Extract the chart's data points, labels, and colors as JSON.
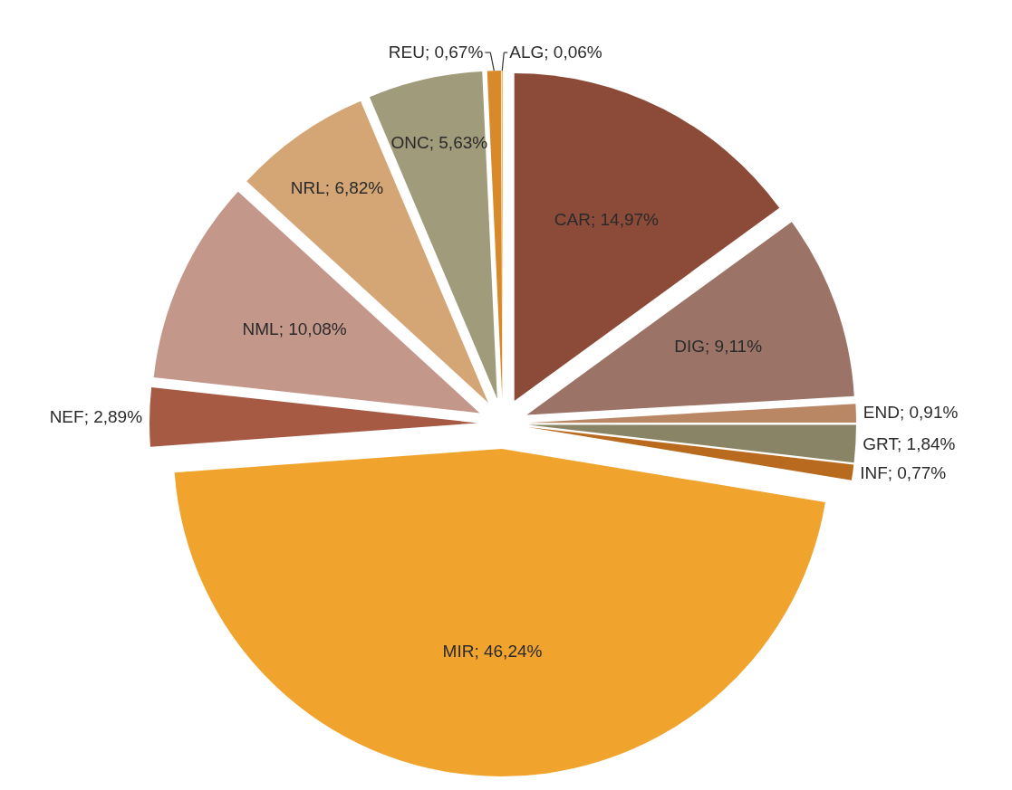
{
  "chart_data": {
    "type": "pie",
    "categories": [
      "CAR",
      "DIG",
      "END",
      "GRT",
      "INF",
      "MIR",
      "NEF",
      "NML",
      "NRL",
      "ONC",
      "REU",
      "ALG"
    ],
    "values": [
      14.97,
      9.11,
      0.91,
      1.84,
      0.77,
      46.24,
      2.89,
      10.08,
      6.82,
      5.63,
      0.67,
      0.06
    ],
    "value_labels": [
      "14,97%",
      "9,11%",
      "0,91%",
      "1,84%",
      "0,77%",
      "46,24%",
      "2,89%",
      "10,08%",
      "6,82%",
      "5,63%",
      "0,67%",
      "0,06%"
    ],
    "colors": [
      "#8b4b38",
      "#9c7467",
      "#b98763",
      "#8a8467",
      "#b86b1f",
      "#f0a42e",
      "#a65943",
      "#c4978b",
      "#d4a675",
      "#a09b7a",
      "#d88a2a",
      "#f2b45c"
    ]
  }
}
